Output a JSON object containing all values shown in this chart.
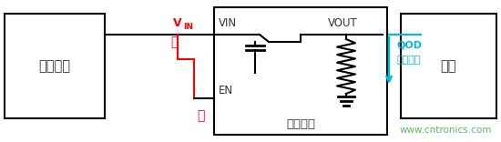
{
  "bg_color": "#ffffff",
  "line_color": "#000000",
  "red_color": "#ff0000",
  "cyan_color": "#00bcd4",
  "green_color": "#4caf50",
  "box_power_label": "电源开关",
  "box_load_label": "负载",
  "box_switch_label": "负载开关",
  "vin_label": "V",
  "vin_sub": "IN",
  "vin_pin": "VIN",
  "vout_pin": "VOUT",
  "en_pin": "EN",
  "qod_label": "QOD",
  "qod_sub": "放电通路",
  "open_label": "开",
  "close_label": "关",
  "watermark": "www.cntronics.com"
}
